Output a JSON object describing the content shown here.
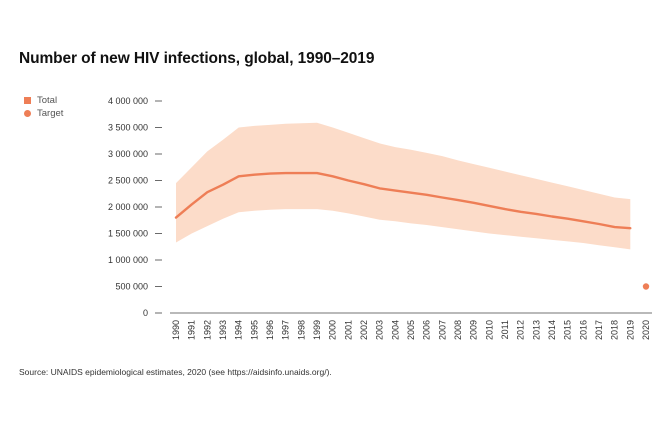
{
  "title": "Number of new HIV infections, global, 1990–2019",
  "source": "Source: UNAIDS epidemiological estimates, 2020 (see https://aidsinfo.unaids.org/).",
  "legend": [
    {
      "label": "Total",
      "shape": "square",
      "color": "#ee7e56"
    },
    {
      "label": "Target",
      "shape": "circle",
      "color": "#ee7e56"
    }
  ],
  "chart_data": {
    "type": "line",
    "title": "Number of new HIV infections, global, 1990–2019",
    "xlabel": "",
    "ylabel": "",
    "ylim": [
      0,
      4000000
    ],
    "yticks": [
      0,
      500000,
      1000000,
      1500000,
      2000000,
      2500000,
      3000000,
      3500000,
      4000000
    ],
    "ytick_labels": [
      "0",
      "500 000",
      "1 000 000",
      "1 500 000",
      "2 000 000",
      "2 500 000",
      "3 000 000",
      "3 500 000",
      "4 000 000"
    ],
    "x": [
      1990,
      1991,
      1992,
      1993,
      1994,
      1995,
      1996,
      1997,
      1998,
      1999,
      2000,
      2001,
      2002,
      2003,
      2004,
      2005,
      2006,
      2007,
      2008,
      2009,
      2010,
      2011,
      2012,
      2013,
      2014,
      2015,
      2016,
      2017,
      2018,
      2019,
      2020
    ],
    "series": [
      {
        "name": "Total",
        "color": "#ee7e56",
        "band_color": "#fcdcc9",
        "x": [
          1990,
          1991,
          1992,
          1993,
          1994,
          1995,
          1996,
          1997,
          1998,
          1999,
          2000,
          2001,
          2002,
          2003,
          2004,
          2005,
          2006,
          2007,
          2008,
          2009,
          2010,
          2011,
          2012,
          2013,
          2014,
          2015,
          2016,
          2017,
          2018,
          2019
        ],
        "values": [
          1800000,
          2050000,
          2280000,
          2420000,
          2580000,
          2610000,
          2630000,
          2640000,
          2640000,
          2640000,
          2580000,
          2500000,
          2430000,
          2350000,
          2310000,
          2270000,
          2230000,
          2180000,
          2130000,
          2080000,
          2020000,
          1960000,
          1910000,
          1870000,
          1820000,
          1780000,
          1730000,
          1680000,
          1620000,
          1600000
        ],
        "upper": [
          2450000,
          2750000,
          3050000,
          3270000,
          3500000,
          3530000,
          3550000,
          3570000,
          3580000,
          3590000,
          3500000,
          3400000,
          3300000,
          3200000,
          3130000,
          3080000,
          3020000,
          2960000,
          2880000,
          2810000,
          2740000,
          2670000,
          2600000,
          2530000,
          2460000,
          2390000,
          2320000,
          2250000,
          2180000,
          2150000
        ],
        "lower": [
          1330000,
          1500000,
          1640000,
          1780000,
          1900000,
          1930000,
          1950000,
          1960000,
          1960000,
          1960000,
          1930000,
          1880000,
          1820000,
          1760000,
          1730000,
          1690000,
          1660000,
          1620000,
          1580000,
          1540000,
          1500000,
          1470000,
          1440000,
          1410000,
          1380000,
          1350000,
          1320000,
          1280000,
          1240000,
          1200000
        ]
      },
      {
        "name": "Target",
        "color": "#ee7e56",
        "x": [
          2020
        ],
        "values": [
          500000
        ]
      }
    ],
    "grid": false,
    "legend_position": "top-left"
  }
}
